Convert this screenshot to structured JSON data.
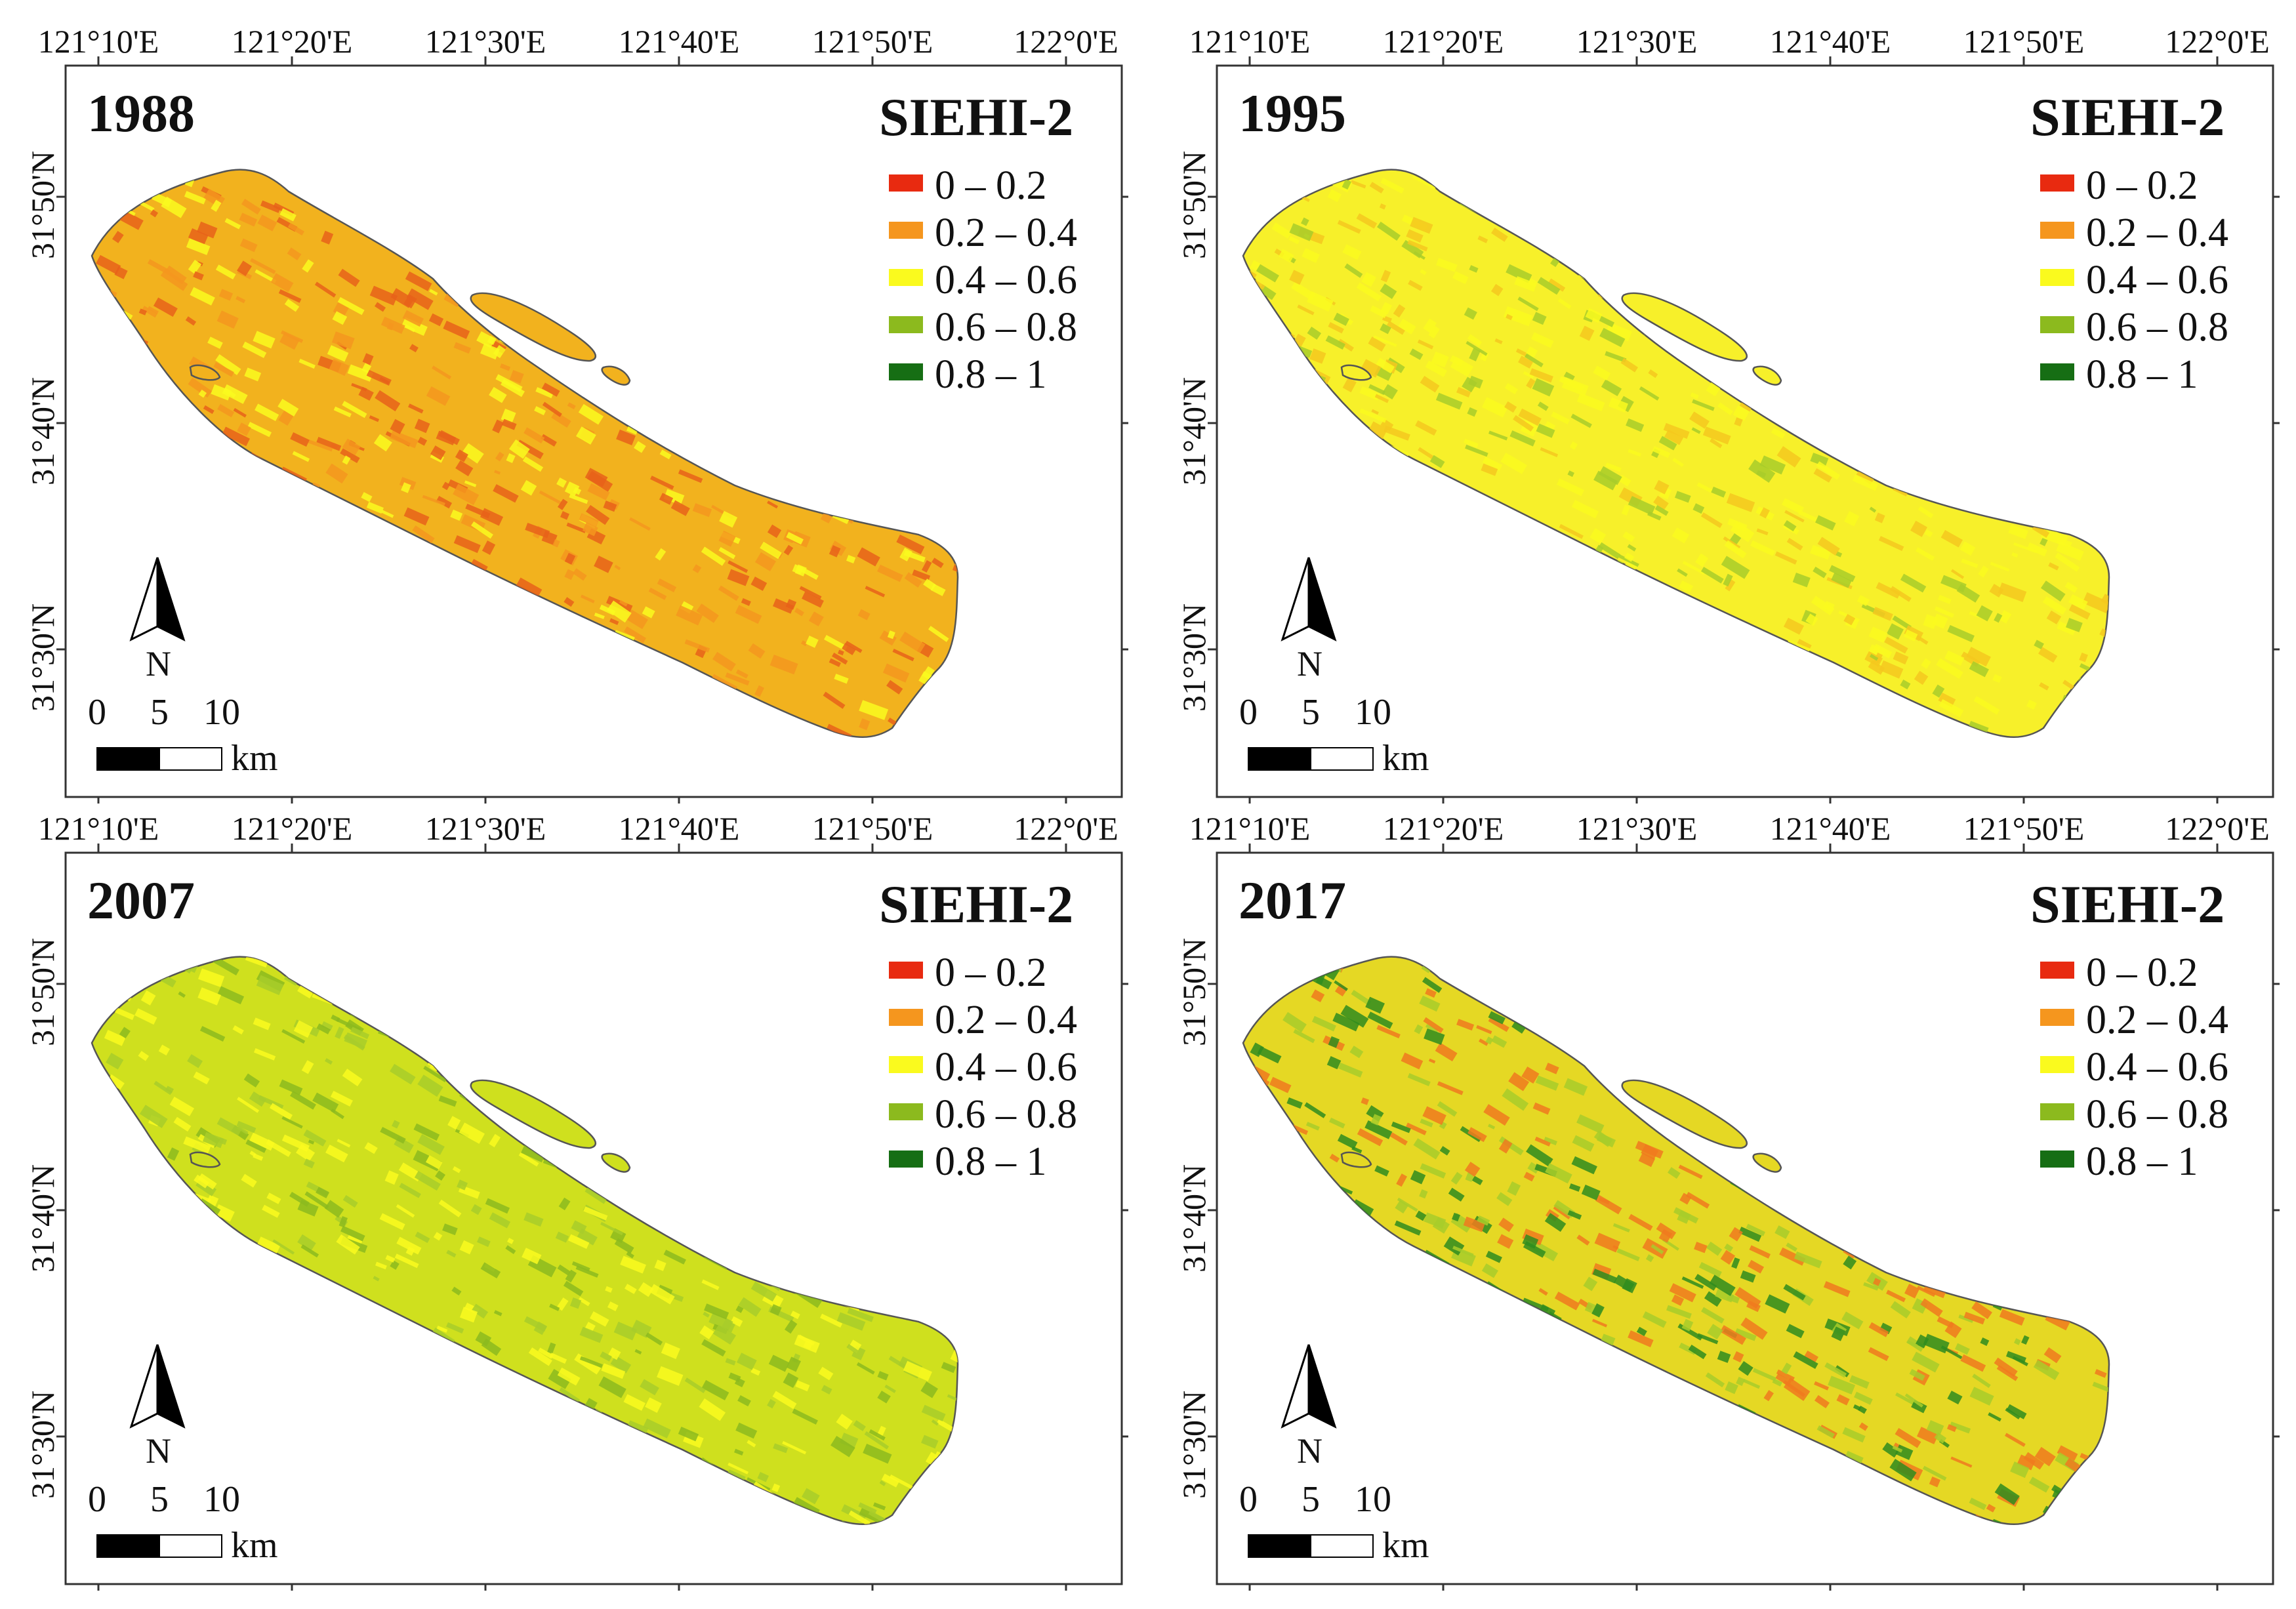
{
  "longitude_labels": [
    "121°10'E",
    "121°20'E",
    "121°30'E",
    "121°40'E",
    "121°50'E",
    "122°0'E"
  ],
  "latitude_labels": [
    "31°50'N",
    "31°40'N",
    "31°30'N"
  ],
  "legend": {
    "title": "SIEHI-2",
    "classes": [
      {
        "label": "0 – 0.2",
        "color": "#e82a10"
      },
      {
        "label": "0.2 – 0.4",
        "color": "#f5961e"
      },
      {
        "label": "0.4 – 0.6",
        "color": "#fafa1e"
      },
      {
        "label": "0.6 – 0.8",
        "color": "#8cba1e"
      },
      {
        "label": "0.8 – 1",
        "color": "#166e14"
      }
    ]
  },
  "scale_bar": {
    "ticks": [
      "0",
      "5",
      "10"
    ],
    "unit": "km"
  },
  "north_arrow_label": "N",
  "panels": [
    {
      "year": "1988",
      "island_color": "#f2b21e",
      "mottle": [
        "#e8621a",
        "#fafa1e",
        "#f5961e"
      ]
    },
    {
      "year": "1995",
      "island_color": "#f7f02a",
      "mottle": [
        "#a8cc2a",
        "#f5c81e",
        "#fafa1e"
      ]
    },
    {
      "year": "2007",
      "island_color": "#cfe01e",
      "mottle": [
        "#8cba1e",
        "#fafa1e",
        "#a8cc2a"
      ]
    },
    {
      "year": "2017",
      "island_color": "#e5d824",
      "mottle": [
        "#2f8c1e",
        "#f07a1e",
        "#a8cc2a"
      ]
    }
  ]
}
